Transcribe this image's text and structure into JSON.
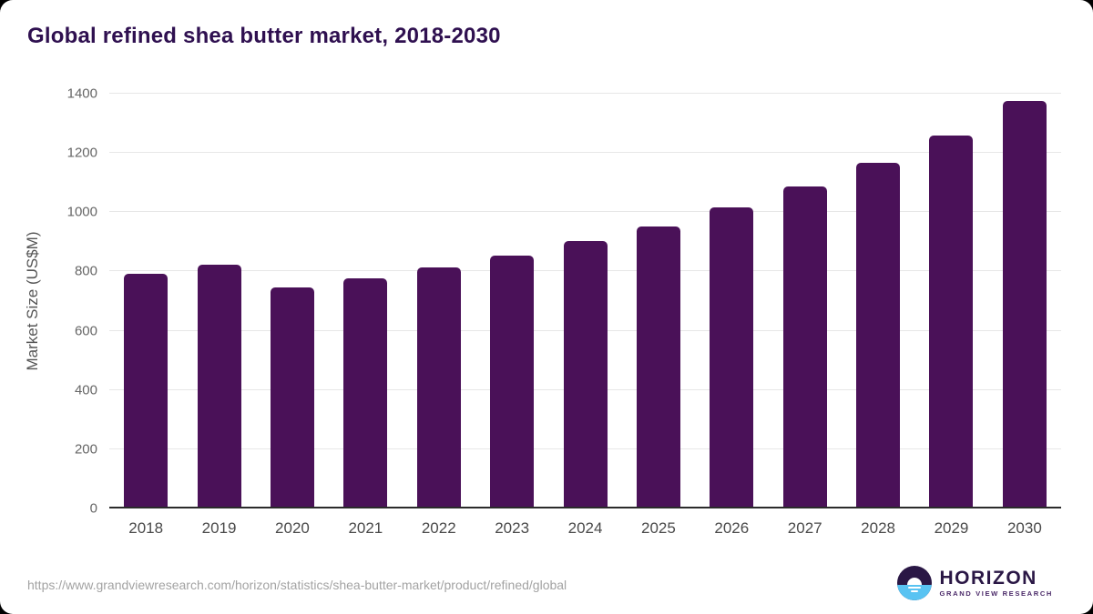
{
  "page": {
    "source_url": "https://www.grandviewresearch.com/horizon/statistics/shea-butter-market/product/refined/global"
  },
  "logo": {
    "name": "HORIZON",
    "tagline": "GRAND VIEW RESEARCH",
    "icon": "horizon-sun-over-sea-icon"
  },
  "colors": {
    "bar": "#4a1158",
    "title": "#2f1050",
    "grid": "#e7e7e7",
    "axis_line": "#2b2b2b",
    "tick_text": "#666666",
    "xlabel_text": "#4a4a4a",
    "url_text": "#a3a3a3",
    "logo_navy": "#2a1745",
    "logo_blue": "#59c3f2",
    "logo_tagline": "#4b2a69"
  },
  "chart_data": {
    "type": "bar",
    "title": "Global refined shea butter market, 2018-2030",
    "categories": [
      "2018",
      "2019",
      "2020",
      "2021",
      "2022",
      "2023",
      "2024",
      "2025",
      "2026",
      "2027",
      "2028",
      "2029",
      "2030"
    ],
    "values": [
      793,
      822,
      747,
      778,
      815,
      855,
      903,
      952,
      1015,
      1086,
      1166,
      1259,
      1375
    ],
    "xlabel": "",
    "ylabel": "Market Size (US$M)",
    "ylim": [
      0,
      1400
    ],
    "yticks": [
      0,
      200,
      400,
      600,
      800,
      1000,
      1200,
      1400
    ],
    "grid": true,
    "legend": false
  }
}
